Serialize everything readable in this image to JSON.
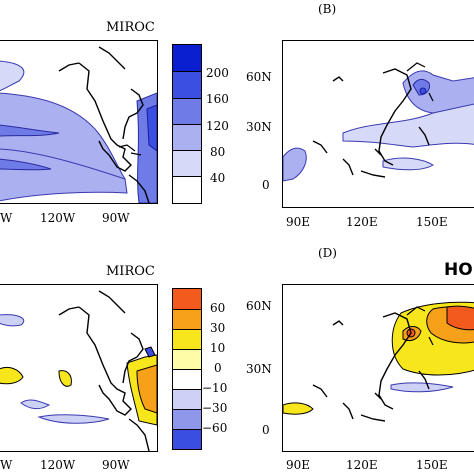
{
  "panels": {
    "top_left": {
      "model_label": "MIROC",
      "x_ticks": [
        "W",
        "120W",
        "90W"
      ]
    },
    "top_right": {
      "letter": "(B)",
      "x_ticks": [
        "90E",
        "120E",
        "150E"
      ],
      "y_ticks": [
        "60N",
        "30N",
        "0"
      ]
    },
    "bottom_left": {
      "model_label": "MIROC",
      "x_ticks": [
        "W",
        "120W",
        "90W"
      ]
    },
    "bottom_right": {
      "letter": "(D)",
      "partial_title": "HO",
      "x_ticks": [
        "90E",
        "120E",
        "150E"
      ],
      "y_ticks": [
        "60N",
        "30N",
        "0"
      ]
    }
  },
  "colorbar_top": {
    "labels": [
      "200",
      "160",
      "120",
      "80",
      "40"
    ],
    "colors": [
      "#0a1fd0",
      "#3b4fe0",
      "#6f7ce8",
      "#aab0f0",
      "#d6d9f8",
      "#ffffff"
    ]
  },
  "colorbar_bottom": {
    "labels": [
      "60",
      "30",
      "10",
      "0",
      "−10",
      "−30",
      "−60"
    ],
    "colors": [
      "#f25a1e",
      "#f7a11a",
      "#f8e61c",
      "#fffca8",
      "#ffffff",
      "#cdd1f6",
      "#8e97ea",
      "#3a4ee0"
    ]
  }
}
